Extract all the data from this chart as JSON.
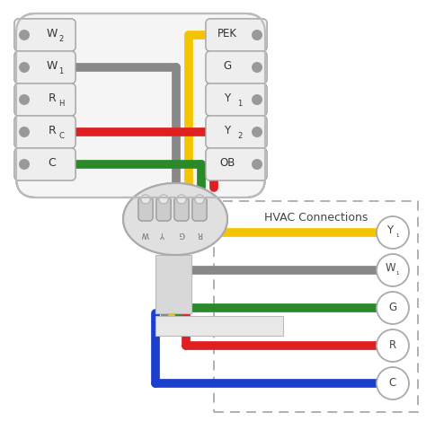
{
  "bg_color": "#ffffff",
  "wire_colors": {
    "yellow": "#f5c400",
    "gray": "#888888",
    "green": "#2a8a2a",
    "red": "#e02020",
    "blue": "#1a3fcc"
  },
  "left_labels": [
    "W2",
    "W1",
    "RH",
    "RC",
    "C"
  ],
  "right_labels": [
    "PEK",
    "G",
    "Y1",
    "Y2",
    "OB"
  ],
  "hvac_labels": [
    "Y1",
    "W1",
    "G",
    "R",
    "C"
  ],
  "hvac_title": "HVAC Connections",
  "plug_labels": [
    "W",
    "Y",
    "G",
    "R"
  ]
}
